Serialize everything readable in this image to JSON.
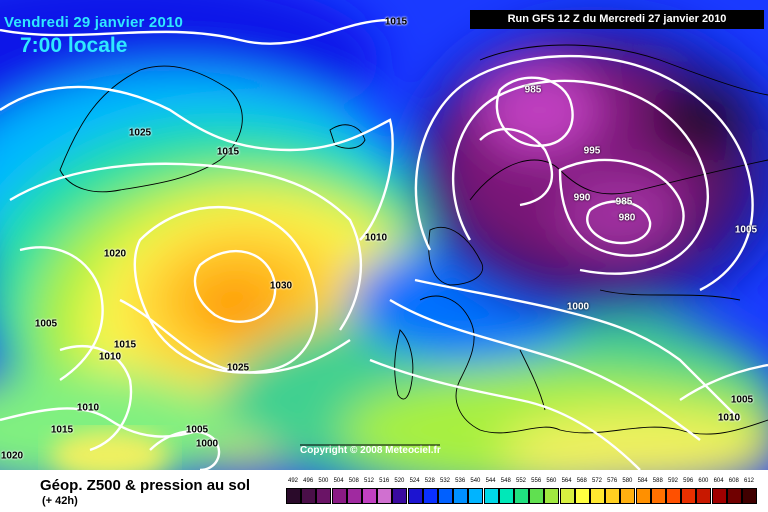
{
  "header": {
    "date": "Vendredi 29 janvier 2010",
    "time": "7:00 locale",
    "run": "Run GFS 12 Z du Mercredi 27 janvier 2010"
  },
  "copyright": "Copyright © 2008 Meteociel.fr",
  "footer": {
    "title": "Géop. Z500 & pression au sol",
    "subtitle": "(+ 42h)"
  },
  "scale": {
    "values": [
      "492",
      "496",
      "500",
      "504",
      "508",
      "512",
      "516",
      "520",
      "524",
      "528",
      "532",
      "536",
      "540",
      "544",
      "548",
      "552",
      "556",
      "560",
      "564",
      "568",
      "572",
      "576",
      "580",
      "584",
      "588",
      "592",
      "596",
      "600",
      "604",
      "608",
      "612"
    ],
    "colors": [
      "#2a0a2a",
      "#4a0f48",
      "#6a1466",
      "#8a1a84",
      "#a02aa0",
      "#c040c0",
      "#d070d0",
      "#3a0aa0",
      "#1c14d0",
      "#0a30ff",
      "#0060ff",
      "#0090ff",
      "#00b4ff",
      "#00d8e8",
      "#00e8b8",
      "#20e080",
      "#60e050",
      "#a0e840",
      "#d8f040",
      "#ffff40",
      "#ffe830",
      "#ffd020",
      "#ffb010",
      "#ff9000",
      "#ff7000",
      "#ff5000",
      "#e83000",
      "#c81800",
      "#a00000",
      "#700000",
      "#400000"
    ]
  },
  "isobars": [
    "1015",
    "1025",
    "1015",
    "1010",
    "1020",
    "1030",
    "1005",
    "1015",
    "1010",
    "1025",
    "1010",
    "1015",
    "1005",
    "1000",
    "1020",
    "985",
    "995",
    "990",
    "985",
    "980",
    "1005",
    "1000",
    "1005",
    "1010"
  ]
}
